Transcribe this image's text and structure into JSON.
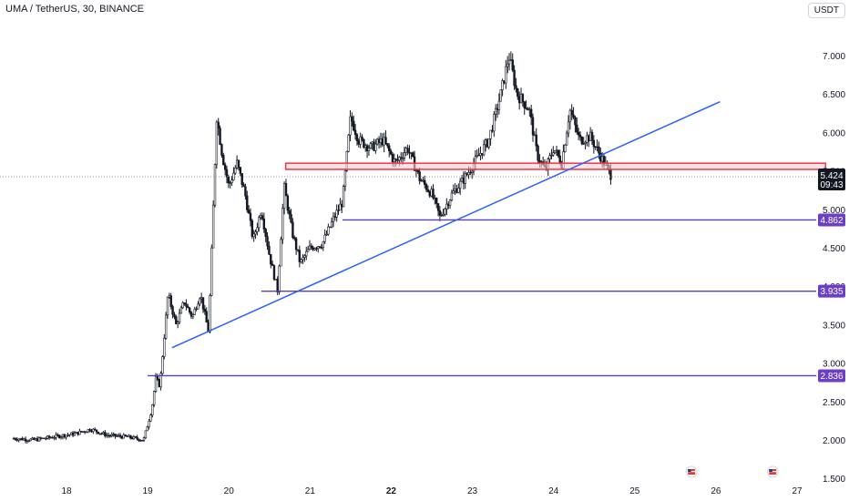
{
  "header": {
    "title": "UMA / TetherUS, 30, BINANCE",
    "currency": "USDT"
  },
  "chart_data": {
    "type": "candlestick",
    "symbol": "UMA / TetherUS",
    "interval": "30",
    "exchange": "BINANCE",
    "ylim": [
      1.5,
      7.5
    ],
    "y_ticks": [
      "7.000",
      "6.500",
      "6.000",
      "5.500",
      "5.000",
      "4.500",
      "4.000",
      "3.500",
      "3.000",
      "2.500",
      "2.000",
      "1.500"
    ],
    "x_range": [
      17.35,
      27.35
    ],
    "x_ticks": [
      {
        "value": 18,
        "label": "18",
        "bold": false
      },
      {
        "value": 19,
        "label": "19",
        "bold": false
      },
      {
        "value": 20,
        "label": "20",
        "bold": false
      },
      {
        "value": 21,
        "label": "21",
        "bold": false
      },
      {
        "value": 22,
        "label": "22",
        "bold": true
      },
      {
        "value": 23,
        "label": "23",
        "bold": false
      },
      {
        "value": 24,
        "label": "24",
        "bold": false
      },
      {
        "value": 25,
        "label": "25",
        "bold": false
      },
      {
        "value": 26,
        "label": "26",
        "bold": false
      },
      {
        "value": 27,
        "label": "27",
        "bold": false
      }
    ],
    "price_path": [
      [
        17.35,
        2.02
      ],
      [
        17.6,
        2.0
      ],
      [
        17.9,
        2.05
      ],
      [
        18.1,
        2.08
      ],
      [
        18.3,
        2.14
      ],
      [
        18.5,
        2.06
      ],
      [
        18.75,
        2.04
      ],
      [
        18.95,
        2.0
      ],
      [
        19.05,
        2.4
      ],
      [
        19.1,
        2.8
      ],
      [
        19.15,
        2.7
      ],
      [
        19.25,
        3.9
      ],
      [
        19.35,
        3.5
      ],
      [
        19.45,
        3.8
      ],
      [
        19.55,
        3.6
      ],
      [
        19.65,
        3.9
      ],
      [
        19.75,
        3.4
      ],
      [
        19.8,
        4.8
      ],
      [
        19.85,
        6.2
      ],
      [
        19.92,
        5.7
      ],
      [
        20.0,
        5.3
      ],
      [
        20.1,
        5.6
      ],
      [
        20.2,
        5.2
      ],
      [
        20.3,
        4.6
      ],
      [
        20.4,
        5.0
      ],
      [
        20.5,
        4.4
      ],
      [
        20.6,
        3.95
      ],
      [
        20.68,
        5.3
      ],
      [
        20.78,
        4.7
      ],
      [
        20.88,
        4.3
      ],
      [
        21.0,
        4.5
      ],
      [
        21.15,
        4.55
      ],
      [
        21.3,
        4.9
      ],
      [
        21.4,
        5.1
      ],
      [
        21.5,
        6.2
      ],
      [
        21.6,
        5.9
      ],
      [
        21.75,
        5.8
      ],
      [
        21.9,
        5.9
      ],
      [
        22.05,
        5.6
      ],
      [
        22.2,
        5.8
      ],
      [
        22.35,
        5.4
      ],
      [
        22.5,
        5.2
      ],
      [
        22.6,
        4.9
      ],
      [
        22.75,
        5.2
      ],
      [
        22.9,
        5.4
      ],
      [
        23.05,
        5.65
      ],
      [
        23.2,
        5.9
      ],
      [
        23.35,
        6.5
      ],
      [
        23.45,
        7.0
      ],
      [
        23.55,
        6.5
      ],
      [
        23.7,
        6.3
      ],
      [
        23.8,
        5.7
      ],
      [
        23.9,
        5.5
      ],
      [
        24.0,
        5.8
      ],
      [
        24.1,
        5.6
      ],
      [
        24.2,
        6.3
      ],
      [
        24.32,
        5.9
      ],
      [
        24.45,
        5.95
      ],
      [
        24.55,
        5.75
      ],
      [
        24.65,
        5.55
      ],
      [
        24.72,
        5.42
      ]
    ],
    "support_levels": [
      {
        "value": 4.862,
        "label": "4.862",
        "x_start": 21.4
      },
      {
        "value": 3.935,
        "label": "3.935",
        "x_start": 20.4
      },
      {
        "value": 2.836,
        "label": "2.836",
        "x_start": 19.0
      }
    ],
    "resistance_zone": {
      "y_low": 5.52,
      "y_high": 5.6,
      "x_start": 20.7,
      "x_end": 27.35
    },
    "trendline": {
      "x1": 19.3,
      "y1": 3.2,
      "x2": 26.05,
      "y2": 6.4
    },
    "last_price": {
      "value": 5.424,
      "label": "5.424",
      "timer": "09:43"
    },
    "event_markers": [
      25.7,
      26.7
    ],
    "colors": {
      "candle": "#131722",
      "level": "#5b3bbf",
      "level_label_bg": "#6c3fc4",
      "trendline": "#2962ff",
      "zone_stroke": "#f23645",
      "zone_fill": "#f8d0d4",
      "price_label_bg": "#131722",
      "grid_dotted": "#9598a1"
    }
  }
}
